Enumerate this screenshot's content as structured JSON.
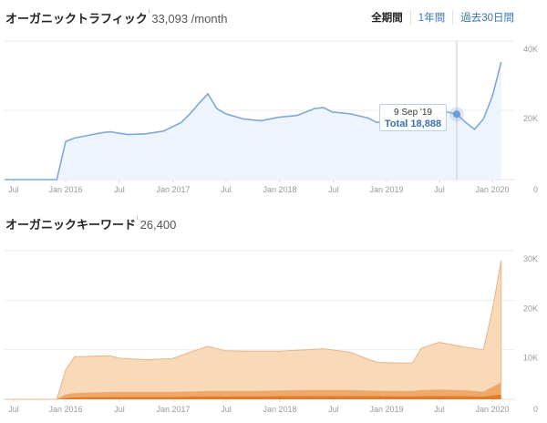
{
  "traffic": {
    "title": "オーガニックトラフィック",
    "info": "i",
    "value": "33,093 /month",
    "periods": [
      "全期間",
      "1年間",
      "過去30日間"
    ],
    "tooltip": {
      "date": "9 Sep '19",
      "total": "Total 18,888"
    },
    "color": "#7fa8d6"
  },
  "keywords": {
    "title": "オーガニックキーワード",
    "info": "i",
    "value": "26,400",
    "colors": [
      "#e07b2c",
      "#f0a868",
      "#f8d9b8"
    ]
  },
  "chart_data": [
    {
      "type": "area",
      "x_ticks": [
        "Jul",
        "Jan 2016",
        "Jul",
        "Jan 2017",
        "Jul",
        "Jan 2018",
        "Jul",
        "Jan 2019",
        "Jul",
        "Jan 2020"
      ],
      "y_ticks": [
        "0",
        "20K",
        "40K"
      ],
      "ylim": [
        0,
        40000
      ],
      "grid": true,
      "x": [
        "2015-06",
        "2015-12",
        "2016-01",
        "2016-02",
        "2016-03",
        "2016-05",
        "2016-06",
        "2016-08",
        "2016-10",
        "2016-12",
        "2017-02",
        "2017-03",
        "2017-04",
        "2017-05",
        "2017-06",
        "2017-07",
        "2017-09",
        "2017-11",
        "2018-01",
        "2018-03",
        "2018-05",
        "2018-06",
        "2018-07",
        "2018-09",
        "2018-11",
        "2018-12",
        "2019-02",
        "2019-04",
        "2019-06",
        "2019-08",
        "2019-09",
        "2019-10",
        "2019-11",
        "2019-12",
        "2020-01",
        "2020-02"
      ],
      "values": [
        0,
        0,
        11000,
        12000,
        12500,
        13500,
        13800,
        13000,
        13200,
        14000,
        16500,
        19000,
        22000,
        24800,
        20500,
        19000,
        17500,
        17000,
        18000,
        18500,
        20500,
        20800,
        19500,
        19000,
        17800,
        16500,
        17000,
        17500,
        18500,
        19500,
        18888,
        16500,
        14500,
        17500,
        24000,
        34000
      ]
    },
    {
      "type": "area",
      "stacked": true,
      "x_ticks": [
        "Jul",
        "Jan 2016",
        "Jul",
        "Jan 2017",
        "Jul",
        "Jan 2018",
        "Jul",
        "Jan 2019",
        "Jul",
        "Jan 2020"
      ],
      "y_ticks": [
        "0",
        "10K",
        "20K",
        "30K"
      ],
      "ylim": [
        0,
        30000
      ],
      "grid": true,
      "x": [
        "2015-06",
        "2015-12",
        "2016-01",
        "2016-02",
        "2016-06",
        "2016-07",
        "2016-10",
        "2017-01",
        "2017-03",
        "2017-05",
        "2017-07",
        "2017-10",
        "2018-01",
        "2018-04",
        "2018-06",
        "2018-09",
        "2018-12",
        "2019-03",
        "2019-04",
        "2019-05",
        "2019-07",
        "2019-10",
        "2019-12",
        "2020-01",
        "2020-02"
      ],
      "series": [
        {
          "values": [
            0,
            0,
            300,
            400,
            500,
            500,
            500,
            500,
            550,
            600,
            600,
            600,
            650,
            700,
            700,
            700,
            650,
            600,
            600,
            650,
            700,
            650,
            550,
            800,
            1000
          ]
        },
        {
          "values": [
            0,
            0,
            600,
            800,
            900,
            900,
            900,
            900,
            950,
            1000,
            1000,
            1000,
            1050,
            1100,
            1100,
            1100,
            1000,
            1000,
            1000,
            1150,
            1200,
            1100,
            900,
            1600,
            2400
          ]
        },
        {
          "values": [
            0,
            0,
            5000,
            7400,
            7400,
            6900,
            6600,
            6800,
            8000,
            9100,
            8200,
            8100,
            8000,
            8200,
            8400,
            7700,
            5800,
            5700,
            5700,
            8500,
            9600,
            8750,
            8550,
            15600,
            24600
          ]
        }
      ]
    }
  ]
}
